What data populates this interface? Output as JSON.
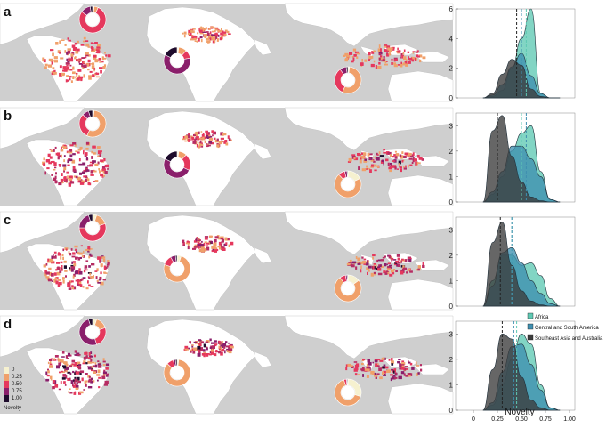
{
  "figure": {
    "panel_letters": [
      "a",
      "b",
      "c",
      "d"
    ],
    "color_legend": {
      "title": "Novelty",
      "values": [
        "0",
        "0.25",
        "0.50",
        "0.75",
        "1.00"
      ],
      "colors": [
        "#f6f1cf",
        "#f0a06a",
        "#e5385d",
        "#8a1f6b",
        "#1e0b2c"
      ]
    },
    "donut_colors": [
      "#f6f1cf",
      "#f0a06a",
      "#e5385d",
      "#8a1f6b",
      "#1e0b2c"
    ],
    "panels": [
      {
        "id": "a",
        "donuts": [
          [
            0.02,
            0.05,
            0.78,
            0.12,
            0.03
          ],
          [
            0.02,
            0.1,
            0.1,
            0.6,
            0.18
          ],
          [
            0.02,
            0.55,
            0.33,
            0.08,
            0.02
          ]
        ]
      },
      {
        "id": "b",
        "donuts": [
          [
            0.02,
            0.55,
            0.3,
            0.08,
            0.05
          ],
          [
            0.02,
            0.1,
            0.2,
            0.5,
            0.18
          ],
          [
            0.18,
            0.7,
            0.08,
            0.03,
            0.01
          ]
        ]
      },
      {
        "id": "c",
        "donuts": [
          [
            0.05,
            0.15,
            0.55,
            0.2,
            0.05
          ],
          [
            0.05,
            0.75,
            0.12,
            0.06,
            0.02
          ],
          [
            0.15,
            0.75,
            0.07,
            0.02,
            0.01
          ]
        ]
      },
      {
        "id": "d",
        "donuts": [
          [
            0.05,
            0.15,
            0.25,
            0.5,
            0.05
          ],
          [
            0.02,
            0.85,
            0.08,
            0.03,
            0.02
          ],
          [
            0.3,
            0.65,
            0.03,
            0.01,
            0.01
          ]
        ]
      }
    ]
  },
  "chart_data": {
    "type": "area",
    "xlabel": "Novelty",
    "xlim": [
      0,
      1
    ],
    "x_ticks": [
      "0",
      "0.25",
      "0.50",
      "0.75",
      "1.00"
    ],
    "legend": {
      "placement": "right",
      "entries": [
        "Africa",
        "Central and South America",
        "Southeast Asia and Australia"
      ]
    },
    "series_colors": [
      "#5fc9b3",
      "#3f8fb0",
      "#3b3b3b"
    ],
    "x": [
      0.1,
      0.2,
      0.3,
      0.4,
      0.5,
      0.6,
      0.7,
      0.8,
      0.9
    ],
    "panels": [
      {
        "id": "a",
        "ylim": [
          0,
          6
        ],
        "y_ticks": [
          "0",
          "2",
          "4",
          "6"
        ],
        "series": [
          {
            "name": "Africa",
            "values": [
              0,
              0.1,
              0.5,
              2.0,
              4.0,
              6.0,
              0.3,
              0,
              0
            ],
            "mean": 0.55
          },
          {
            "name": "Central and South America",
            "values": [
              0,
              0.2,
              0.9,
              2.1,
              3.0,
              1.5,
              0.3,
              0,
              0
            ],
            "mean": 0.5
          },
          {
            "name": "Southeast Asia and Australia",
            "values": [
              0,
              0.3,
              1.6,
              2.6,
              2.2,
              0.6,
              0.1,
              0,
              0
            ],
            "mean": 0.45
          }
        ]
      },
      {
        "id": "b",
        "ylim": [
          0,
          3.5
        ],
        "y_ticks": [
          "0",
          "1",
          "2",
          "3"
        ],
        "series": [
          {
            "name": "Africa",
            "values": [
              0,
              0.3,
              1.0,
              2.0,
              2.7,
              3.0,
              1.2,
              0.1,
              0
            ],
            "mean": 0.5
          },
          {
            "name": "Central and South America",
            "values": [
              0,
              0.4,
              1.2,
              2.2,
              2.2,
              1.7,
              1.0,
              0.1,
              0
            ],
            "mean": 0.55
          },
          {
            "name": "Southeast Asia and Australia",
            "values": [
              0,
              2.8,
              3.4,
              1.8,
              0.8,
              0.2,
              0.05,
              0,
              0
            ],
            "mean": 0.25
          }
        ]
      },
      {
        "id": "c",
        "ylim": [
          0,
          3.5
        ],
        "y_ticks": [
          "0",
          "1",
          "2",
          "3"
        ],
        "series": [
          {
            "name": "Africa",
            "values": [
              0,
              1.0,
              2.0,
              2.0,
              1.6,
              1.7,
              1.2,
              0.3,
              0
            ],
            "mean": 0.4
          },
          {
            "name": "Central and South America",
            "values": [
              0,
              0.8,
              2.1,
              2.3,
              1.7,
              1.0,
              0.5,
              0.1,
              0
            ],
            "mean": 0.4
          },
          {
            "name": "Southeast Asia and Australia",
            "values": [
              0,
              2.5,
              3.3,
              1.6,
              0.6,
              0.2,
              0.05,
              0,
              0
            ],
            "mean": 0.28
          }
        ]
      },
      {
        "id": "d",
        "ylim": [
          0,
          3.5
        ],
        "y_ticks": [
          "0",
          "1",
          "2",
          "3"
        ],
        "series": [
          {
            "name": "Africa",
            "values": [
              0,
              0.2,
              1.0,
              2.0,
              3.0,
              2.6,
              1.0,
              0.1,
              0
            ],
            "mean": 0.45
          },
          {
            "name": "Central and South America",
            "values": [
              0,
              0.3,
              1.5,
              2.5,
              2.6,
              1.8,
              0.8,
              0.1,
              0
            ],
            "mean": 0.42
          },
          {
            "name": "Southeast Asia and Australia",
            "values": [
              0,
              1.6,
              3.0,
              2.8,
              1.3,
              0.4,
              0.1,
              0,
              0
            ],
            "mean": 0.3
          }
        ]
      }
    ]
  }
}
